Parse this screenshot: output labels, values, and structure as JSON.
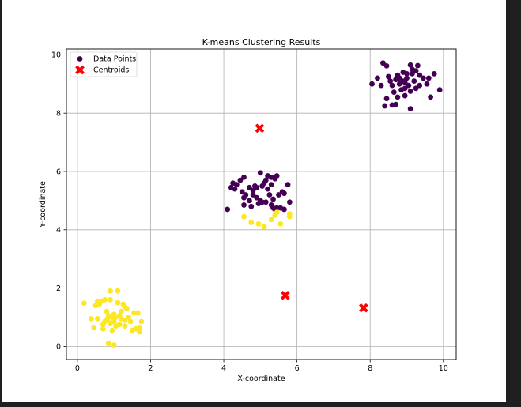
{
  "chart_data": {
    "type": "scatter",
    "title": "K-means Clustering Results",
    "xlabel": "X-coordinate",
    "ylabel": "Y-coordinate",
    "xlim": [
      -0.3,
      10.35
    ],
    "ylim": [
      -0.45,
      10.2
    ],
    "xticks": [
      0,
      2,
      4,
      6,
      8,
      10
    ],
    "yticks": [
      0,
      2,
      4,
      6,
      8,
      10
    ],
    "grid": true,
    "legend_placement": "top-left",
    "colors": {
      "cluster_0": "#440154",
      "cluster_1": "#fde725",
      "centroid": "#ff0000"
    },
    "legend": [
      {
        "label": "Data Points",
        "marker": "circle",
        "color": "#440154"
      },
      {
        "label": "Centroids",
        "marker": "x",
        "color": "#ff0000"
      }
    ],
    "centroids": [
      [
        4.98,
        7.48
      ],
      [
        5.68,
        1.75
      ],
      [
        7.82,
        1.32
      ]
    ],
    "series": [
      {
        "name": "Data Points",
        "cluster": 0,
        "points": [
          [
            8.35,
            9.72
          ],
          [
            8.45,
            9.62
          ],
          [
            8.2,
            9.2
          ],
          [
            8.3,
            8.95
          ],
          [
            8.05,
            9.0
          ],
          [
            8.45,
            8.5
          ],
          [
            8.4,
            8.25
          ],
          [
            8.6,
            8.28
          ],
          [
            8.7,
            8.3
          ],
          [
            8.75,
            8.55
          ],
          [
            8.65,
            8.72
          ],
          [
            8.8,
            9.0
          ],
          [
            8.7,
            9.15
          ],
          [
            8.9,
            9.4
          ],
          [
            8.75,
            9.3
          ],
          [
            9.0,
            9.2
          ],
          [
            8.95,
            9.05
          ],
          [
            9.1,
            9.65
          ],
          [
            9.3,
            9.63
          ],
          [
            9.15,
            9.35
          ],
          [
            9.25,
            9.45
          ],
          [
            9.35,
            9.3
          ],
          [
            9.2,
            9.1
          ],
          [
            9.05,
            8.95
          ],
          [
            9.25,
            8.85
          ],
          [
            9.1,
            8.75
          ],
          [
            8.95,
            8.6
          ],
          [
            9.1,
            8.15
          ],
          [
            9.45,
            9.2
          ],
          [
            9.6,
            9.2
          ],
          [
            9.75,
            9.35
          ],
          [
            9.55,
            9.0
          ],
          [
            9.65,
            8.55
          ],
          [
            9.9,
            8.8
          ],
          [
            8.85,
            8.8
          ],
          [
            8.6,
            8.95
          ],
          [
            8.55,
            9.1
          ],
          [
            8.8,
            9.2
          ],
          [
            9.0,
            9.35
          ],
          [
            9.35,
            8.95
          ],
          [
            9.15,
            9.5
          ],
          [
            8.9,
            9.1
          ],
          [
            8.5,
            9.25
          ],
          [
            8.95,
            8.85
          ],
          [
            4.1,
            4.7
          ],
          [
            4.2,
            5.45
          ],
          [
            4.25,
            5.6
          ],
          [
            4.3,
            5.4
          ],
          [
            4.35,
            5.55
          ],
          [
            4.45,
            5.7
          ],
          [
            4.55,
            5.8
          ],
          [
            4.5,
            5.3
          ],
          [
            4.55,
            5.1
          ],
          [
            4.6,
            5.2
          ],
          [
            4.7,
            5.0
          ],
          [
            4.8,
            5.2
          ],
          [
            4.7,
            5.45
          ],
          [
            4.8,
            5.35
          ],
          [
            4.85,
            5.5
          ],
          [
            4.9,
            5.1
          ],
          [
            5.0,
            5.0
          ],
          [
            5.05,
            5.5
          ],
          [
            5.1,
            5.6
          ],
          [
            5.0,
            5.95
          ],
          [
            5.15,
            5.7
          ],
          [
            5.2,
            5.85
          ],
          [
            5.3,
            5.8
          ],
          [
            5.4,
            5.75
          ],
          [
            5.45,
            5.85
          ],
          [
            5.3,
            5.55
          ],
          [
            5.2,
            5.4
          ],
          [
            5.25,
            5.2
          ],
          [
            5.35,
            5.05
          ],
          [
            5.5,
            5.2
          ],
          [
            5.6,
            5.3
          ],
          [
            5.65,
            5.25
          ],
          [
            5.75,
            5.55
          ],
          [
            5.8,
            4.95
          ],
          [
            5.65,
            4.7
          ],
          [
            5.55,
            4.75
          ],
          [
            5.45,
            4.75
          ],
          [
            5.4,
            4.7
          ],
          [
            5.3,
            4.85
          ],
          [
            5.15,
            4.95
          ],
          [
            4.95,
            4.9
          ],
          [
            4.75,
            4.8
          ],
          [
            4.55,
            4.85
          ],
          [
            5.05,
            4.95
          ],
          [
            5.35,
            4.75
          ],
          [
            4.9,
            5.45
          ]
        ]
      },
      {
        "name": "",
        "cluster": 1,
        "points": [
          [
            4.55,
            4.45
          ],
          [
            4.75,
            4.25
          ],
          [
            4.95,
            4.2
          ],
          [
            5.1,
            4.1
          ],
          [
            5.3,
            4.35
          ],
          [
            5.4,
            4.5
          ],
          [
            5.45,
            4.6
          ],
          [
            5.55,
            4.2
          ],
          [
            5.8,
            4.55
          ],
          [
            5.8,
            4.45
          ],
          [
            0.18,
            1.48
          ],
          [
            0.38,
            0.95
          ],
          [
            0.45,
            0.65
          ],
          [
            0.5,
            1.4
          ],
          [
            0.55,
            1.55
          ],
          [
            0.55,
            0.95
          ],
          [
            0.6,
            1.45
          ],
          [
            0.7,
            0.75
          ],
          [
            0.7,
            0.6
          ],
          [
            0.75,
            0.85
          ],
          [
            0.75,
            1.6
          ],
          [
            0.8,
            1.2
          ],
          [
            0.82,
            0.95
          ],
          [
            0.85,
            0.1
          ],
          [
            0.9,
            1.9
          ],
          [
            0.9,
            1.6
          ],
          [
            0.9,
            0.8
          ],
          [
            0.95,
            0.55
          ],
          [
            0.95,
            1.0
          ],
          [
            1.0,
            0.05
          ],
          [
            1.0,
            0.85
          ],
          [
            1.0,
            1.1
          ],
          [
            1.05,
            0.7
          ],
          [
            1.05,
            1.0
          ],
          [
            1.1,
            1.5
          ],
          [
            1.1,
            1.9
          ],
          [
            1.15,
            0.75
          ],
          [
            1.2,
            1.2
          ],
          [
            1.2,
            0.95
          ],
          [
            1.25,
            1.45
          ],
          [
            1.3,
            0.9
          ],
          [
            1.3,
            0.7
          ],
          [
            1.3,
            1.35
          ],
          [
            1.35,
            1.3
          ],
          [
            1.4,
            1.0
          ],
          [
            1.45,
            0.85
          ],
          [
            1.5,
            0.55
          ],
          [
            1.55,
            1.15
          ],
          [
            1.6,
            0.6
          ],
          [
            1.65,
            1.15
          ],
          [
            1.7,
            0.65
          ],
          [
            1.7,
            0.5
          ],
          [
            1.75,
            0.85
          ],
          [
            0.65,
            1.55
          ],
          [
            0.85,
            1.05
          ],
          [
            1.15,
            1.05
          ]
        ]
      }
    ]
  }
}
